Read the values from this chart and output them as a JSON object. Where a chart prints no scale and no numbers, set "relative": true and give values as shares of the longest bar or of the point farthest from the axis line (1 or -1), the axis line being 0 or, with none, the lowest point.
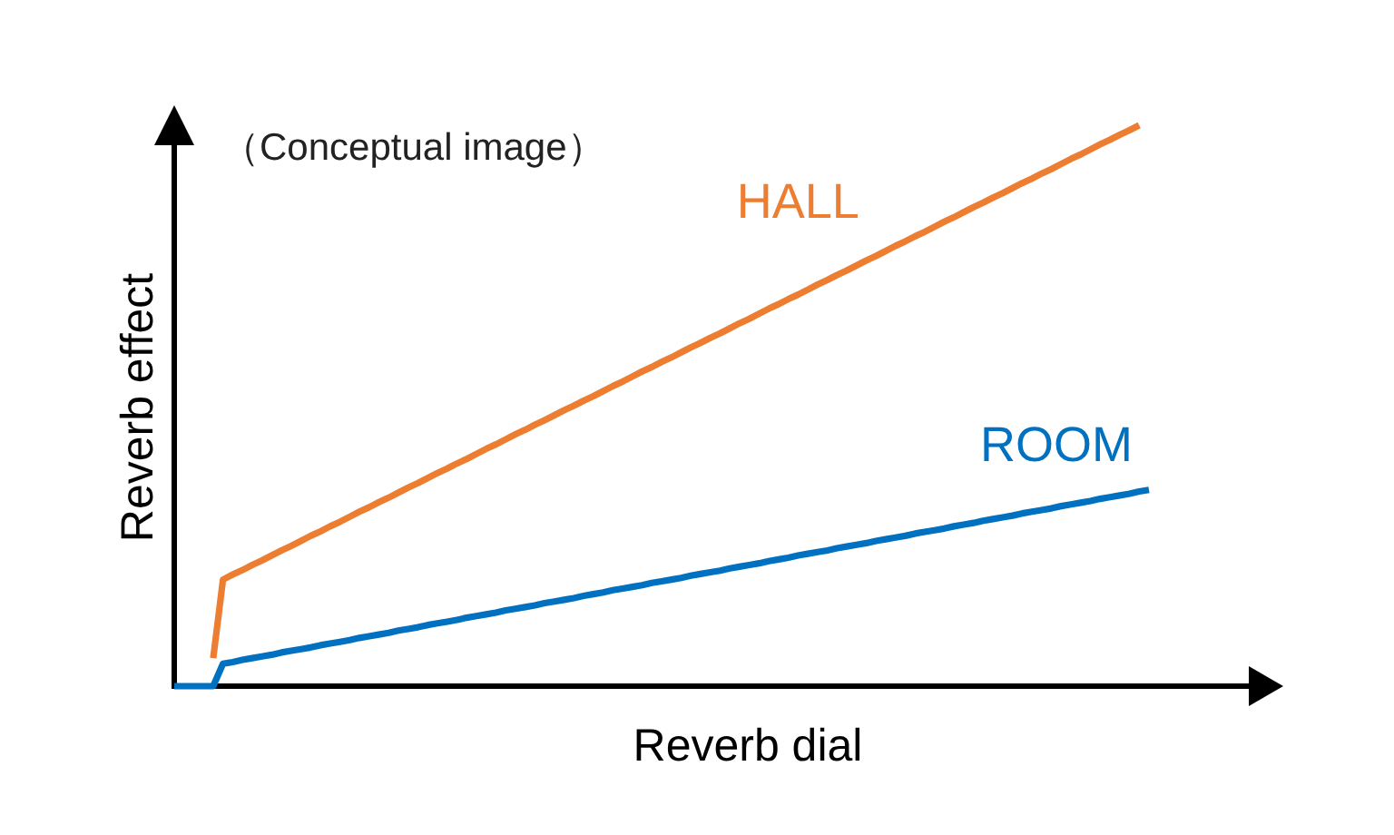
{
  "chart_data": {
    "type": "line",
    "relative": true,
    "xlabel": "Reverb dial",
    "ylabel": "Reverb effect",
    "annotations": [
      "（Conceptual image）"
    ],
    "legend": false,
    "line_style": "solid",
    "categories": [
      null,
      null,
      null,
      null,
      null,
      null,
      null,
      null,
      null,
      null,
      null,
      null,
      null,
      null,
      null,
      null,
      null,
      null,
      null,
      null,
      null,
      null,
      null,
      null,
      null,
      null,
      null,
      null,
      null,
      null,
      null,
      null,
      null,
      null,
      null,
      null,
      null,
      null,
      null,
      null,
      null,
      null,
      null,
      null,
      null,
      null,
      null,
      null,
      null,
      null,
      null,
      null,
      null,
      null,
      null,
      null,
      null,
      null,
      null,
      null,
      null,
      null,
      null,
      null,
      null,
      null,
      null,
      null,
      null,
      null,
      null,
      null,
      null,
      null,
      null,
      null,
      null,
      null,
      null,
      null,
      null,
      null,
      null,
      null,
      null,
      null,
      null,
      null,
      null,
      null,
      null,
      null,
      null,
      null,
      null,
      null,
      null,
      null,
      null,
      null,
      null
    ],
    "series": [
      {
        "name": "HALL",
        "color": "#ed7d31",
        "values": [
          null,
          null,
          null,
          null,
          0.05,
          0.19,
          0.199,
          0.207,
          0.216,
          0.224,
          0.233,
          0.242,
          0.25,
          0.259,
          0.268,
          0.276,
          0.285,
          0.293,
          0.302,
          0.311,
          0.319,
          0.328,
          0.336,
          0.345,
          0.354,
          0.362,
          0.371,
          0.38,
          0.388,
          0.397,
          0.405,
          0.414,
          0.423,
          0.431,
          0.44,
          0.449,
          0.457,
          0.466,
          0.474,
          0.483,
          0.492,
          0.5,
          0.509,
          0.517,
          0.526,
          0.535,
          0.543,
          0.552,
          0.561,
          0.569,
          0.578,
          0.586,
          0.595,
          0.604,
          0.612,
          0.621,
          0.629,
          0.638,
          0.647,
          0.655,
          0.664,
          0.673,
          0.681,
          0.69,
          0.698,
          0.707,
          0.716,
          0.724,
          0.733,
          0.741,
          0.75,
          0.759,
          0.767,
          0.776,
          0.785,
          0.793,
          0.802,
          0.81,
          0.819,
          0.828,
          0.836,
          0.845,
          0.854,
          0.862,
          0.871,
          0.879,
          0.888,
          0.897,
          0.905,
          0.914,
          0.922,
          0.931,
          0.94,
          0.948,
          0.957,
          0.966,
          0.974,
          0.983,
          0.991,
          1,
          null
        ]
      },
      {
        "name": "ROOM",
        "color": "#0070c0",
        "values": [
          0,
          0,
          0,
          0,
          0,
          0.04,
          0.043,
          0.047,
          0.05,
          0.053,
          0.056,
          0.06,
          0.063,
          0.066,
          0.069,
          0.073,
          0.076,
          0.079,
          0.082,
          0.086,
          0.089,
          0.092,
          0.095,
          0.099,
          0.102,
          0.105,
          0.109,
          0.112,
          0.115,
          0.118,
          0.122,
          0.125,
          0.128,
          0.131,
          0.135,
          0.138,
          0.141,
          0.144,
          0.148,
          0.151,
          0.154,
          0.157,
          0.161,
          0.164,
          0.167,
          0.171,
          0.174,
          0.177,
          0.18,
          0.184,
          0.187,
          0.19,
          0.193,
          0.197,
          0.2,
          0.203,
          0.206,
          0.21,
          0.213,
          0.216,
          0.219,
          0.223,
          0.226,
          0.229,
          0.233,
          0.236,
          0.239,
          0.242,
          0.246,
          0.249,
          0.252,
          0.255,
          0.259,
          0.262,
          0.265,
          0.268,
          0.272,
          0.275,
          0.278,
          0.281,
          0.285,
          0.288,
          0.291,
          0.295,
          0.298,
          0.301,
          0.304,
          0.308,
          0.311,
          0.314,
          0.317,
          0.321,
          0.324,
          0.327,
          0.33,
          0.334,
          0.337,
          0.34,
          0.343,
          0.347,
          0.35
        ]
      }
    ]
  }
}
